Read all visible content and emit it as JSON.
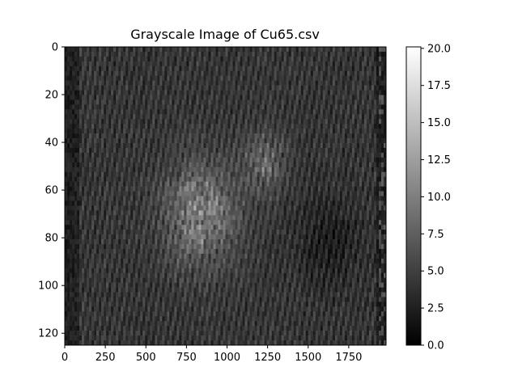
{
  "chart_data": {
    "type": "heatmap",
    "title": "Grayscale Image of Cu65.csv",
    "xlabel": "",
    "ylabel": "",
    "xlim": [
      0,
      1980
    ],
    "ylim": [
      125,
      0
    ],
    "x_ticks": [
      "0",
      "250",
      "500",
      "750",
      "1000",
      "1250",
      "1500",
      "1750"
    ],
    "y_ticks": [
      "0",
      "20",
      "40",
      "60",
      "80",
      "100",
      "120"
    ],
    "colormap": "gray",
    "color_range": [
      0.0,
      20.1
    ],
    "colorbar_ticks": [
      "0.0",
      "2.5",
      "5.0",
      "7.5",
      "10.0",
      "12.5",
      "15.0",
      "17.5",
      "20.0"
    ],
    "grid": false,
    "description_of_values": "noisy striped grayscale intensity image; values mostly 3-8, bright spots up to ~15 near x 700-1000, y 55-90; dark edge bands at x<100 and x>1950"
  }
}
